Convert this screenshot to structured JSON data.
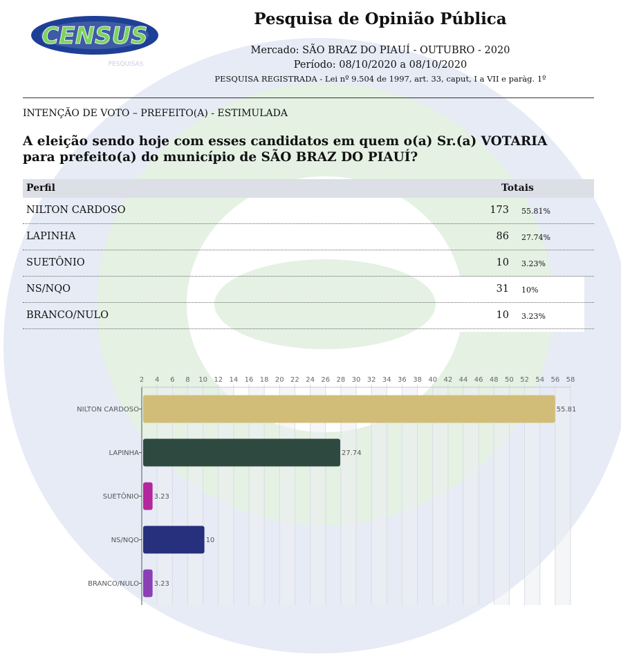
{
  "header": {
    "logo_text": "CENSUS",
    "logo_subtext": "PESQUISAS",
    "title": "Pesquisa de Opinião Pública",
    "market": "Mercado: SÃO BRAZ DO PIAUÍ - OUTUBRO - 2020",
    "period": "Período: 08/10/2020 a 08/10/2020",
    "registration": "PESQUISA REGISTRADA - Lei nº 9.504 de 1997, art. 33, caput, I a VII e paràg. 1º"
  },
  "section_title": "INTENÇÃO DE VOTO – PREFEITO(A) - ESTIMULADA",
  "question": "A eleição sendo hoje com esses candidatos em quem o(a) Sr.(a) VOTARIA para prefeito(a) do município de SÃO BRAZ DO PIAUÍ?",
  "table": {
    "headers": {
      "profile": "Perfil",
      "totals": "Totais"
    },
    "rows": [
      {
        "name": "NILTON CARDOSO",
        "count": "173",
        "pct": "55.81%"
      },
      {
        "name": "LAPINHA",
        "count": "86",
        "pct": "27.74%"
      },
      {
        "name": "SUETÔNIO",
        "count": "10",
        "pct": "3.23%"
      },
      {
        "name": "NS/NQO",
        "count": "31",
        "pct": "10%"
      },
      {
        "name": "BRANCO/NULO",
        "count": "10",
        "pct": "3.23%"
      }
    ]
  },
  "chart_data": {
    "type": "bar",
    "orientation": "horizontal",
    "categories": [
      "NILTON CARDOSO",
      "LAPINHA",
      "SUETÔNIO",
      "NS/NQO",
      "BRANCO/NULO"
    ],
    "values": [
      55.81,
      27.74,
      3.23,
      10,
      3.23
    ],
    "data_labels": [
      "55.81",
      "27.74",
      "3.23",
      "10",
      "3.23"
    ],
    "colors": [
      "#d1bd78",
      "#2e4a40",
      "#b5269c",
      "#27307c",
      "#8a3fb5"
    ],
    "xlim": [
      2,
      58
    ],
    "x_ticks": [
      2,
      4,
      6,
      8,
      10,
      12,
      14,
      16,
      18,
      20,
      22,
      24,
      26,
      28,
      30,
      32,
      34,
      36,
      38,
      40,
      42,
      44,
      46,
      48,
      50,
      52,
      54,
      56,
      58
    ],
    "tick_position": "top",
    "grid": true,
    "title": "",
    "xlabel": "",
    "ylabel": ""
  }
}
